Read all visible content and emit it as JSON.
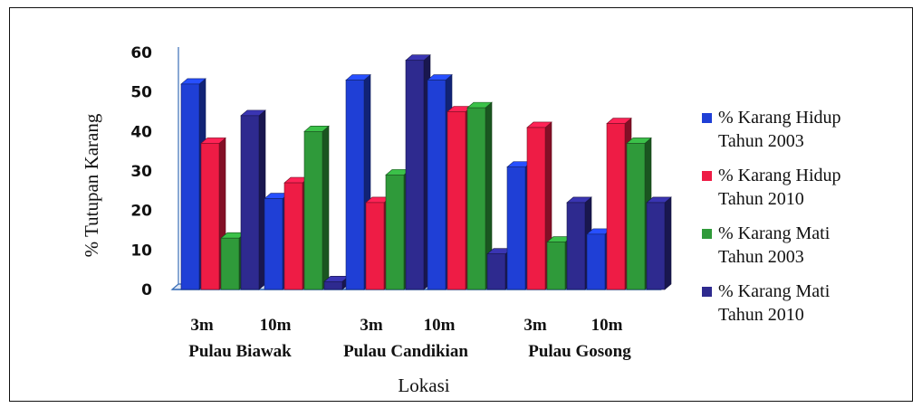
{
  "chart_data": {
    "type": "bar",
    "categories": [
      "3m",
      "10m",
      "3m",
      "10m",
      "3m",
      "10m"
    ],
    "groups": [
      "Pulau Biawak",
      "Pulau Candikian",
      "Pulau Gosong"
    ],
    "series": [
      {
        "name": "% Karang Hidup Tahun 2003",
        "color": "#1f3fd6",
        "values": [
          52,
          23,
          53,
          53,
          31,
          14
        ]
      },
      {
        "name": "% Karang Hidup Tahun 2010",
        "color": "#ee1c45",
        "values": [
          37,
          27,
          22,
          45,
          41,
          42
        ]
      },
      {
        "name": "% Karang Mati Tahun 2003",
        "color": "#2f9a3a",
        "values": [
          13,
          40,
          29,
          46,
          12,
          37
        ]
      },
      {
        "name": "% Karang Mati Tahun 2010",
        "color": "#2e2a8f",
        "values": [
          44,
          2,
          58,
          9,
          22,
          22
        ]
      }
    ],
    "legend_lines": [
      [
        "% Karang Hidup",
        "Tahun 2003"
      ],
      [
        "% Karang Hidup",
        "Tahun 2010"
      ],
      [
        "% Karang Mati",
        "Tahun 2003"
      ],
      [
        "% Karang Mati",
        "Tahun 2010"
      ]
    ],
    "yticks": [
      "0",
      "10",
      "20",
      "30",
      "40",
      "50",
      "60"
    ],
    "ylim": [
      0,
      60
    ],
    "xlabel": "Lokasi",
    "ylabel": "% Tutupan Karang",
    "legend_position": "right",
    "style": "3d"
  }
}
